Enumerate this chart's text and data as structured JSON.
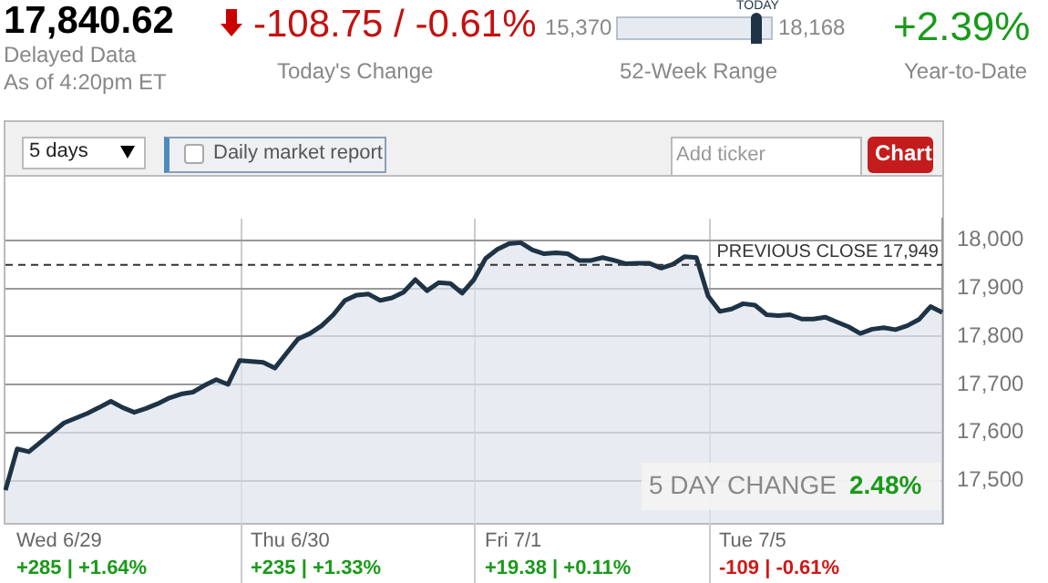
{
  "chart_data": {
    "type": "area",
    "color": "#1e3346",
    "categories": [
      null,
      null,
      null,
      null,
      null,
      null,
      null,
      null,
      null,
      null,
      null,
      null,
      null,
      null,
      null,
      null,
      null,
      null,
      null,
      null,
      null,
      null,
      null,
      null,
      null,
      null,
      null,
      null,
      null,
      null,
      null,
      null,
      null,
      null,
      null,
      null,
      null,
      null,
      null,
      null,
      null,
      null,
      null,
      null,
      null,
      null,
      null,
      null,
      null,
      null,
      null,
      null,
      null,
      null,
      null,
      null,
      null,
      null,
      null,
      null,
      null,
      null,
      null,
      null,
      null,
      null,
      null,
      null,
      null,
      null,
      null,
      null,
      null,
      null,
      null,
      null,
      null,
      null,
      null,
      null,
      null
    ],
    "values": [
      17480,
      17566,
      17560,
      17580,
      17600,
      17620,
      17630,
      17640,
      17652,
      17665,
      17652,
      17642,
      17650,
      17660,
      17672,
      17680,
      17684,
      17698,
      17710,
      17700,
      17750,
      17748,
      17746,
      17734,
      17765,
      17795,
      17806,
      17822,
      17845,
      17875,
      17886,
      17888,
      17875,
      17880,
      17892,
      17918,
      17895,
      17912,
      17910,
      17890,
      17918,
      17962,
      17981,
      17993,
      17995,
      17980,
      17972,
      17974,
      17972,
      17958,
      17958,
      17964,
      17958,
      17951,
      17952,
      17952,
      17942,
      17950,
      17966,
      17964,
      17884,
      17852,
      17857,
      17868,
      17865,
      17845,
      17843,
      17845,
      17836,
      17836,
      17840,
      17830,
      17820,
      17806,
      17815,
      17818,
      17814,
      17822,
      17835,
      17862,
      17850
    ],
    "ylim": [
      17412,
      18045
    ],
    "yticks": [
      {
        "value": 17500,
        "label": "17,500"
      },
      {
        "value": 17600,
        "label": "17,600"
      },
      {
        "value": 17700,
        "label": "17,700"
      },
      {
        "value": 17800,
        "label": "17,800"
      },
      {
        "value": 17900,
        "label": "17,900"
      },
      {
        "value": 18000,
        "label": "18,000"
      }
    ],
    "grid": "y",
    "legend": false,
    "ref_lines": [
      {
        "axis": "y",
        "value": 17949,
        "label": "PREVIOUS CLOSE 17,949",
        "line_style": "dashed",
        "color": "#333333"
      }
    ],
    "annotations": [
      "17,840.62",
      "Delayed Data",
      "As of 4:20pm ET",
      "-108.75 / -0.61%",
      "Today's Change",
      "15,370",
      "TODAY",
      "18,168",
      "52-Week Range",
      "+2.39%",
      "Year-to-Date",
      "5 days",
      "Daily market report",
      "Add ticker",
      "Chart",
      "5 DAY CHANGE",
      "2.48%",
      "Wed 6/29",
      "+285 | +1.64%",
      "Thu 6/30",
      "+235 | +1.33%",
      "Fri 7/1",
      "+19.38 | +0.11%",
      "Tue 7/5",
      "-109 | -0.61%"
    ]
  }
}
